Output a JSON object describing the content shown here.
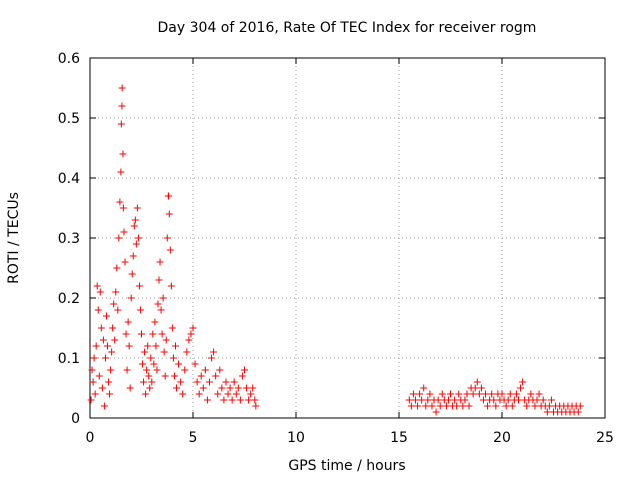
{
  "chart_data": {
    "type": "scatter",
    "title": "Day 304 of 2016, Rate Of TEC Index for receiver rogm",
    "xlabel": "GPS time / hours",
    "ylabel": "ROTI / TECUs",
    "xlim": [
      0,
      25
    ],
    "ylim": [
      0,
      0.6
    ],
    "x_ticks": [
      "0",
      "5",
      "10",
      "15",
      "20",
      "25"
    ],
    "y_ticks": [
      "0",
      "0.1",
      "0.2",
      "0.3",
      "0.4",
      "0.5",
      "0.6"
    ],
    "x_tick_values": [
      0,
      5,
      10,
      15,
      20,
      25
    ],
    "y_tick_values": [
      0,
      0.1,
      0.2,
      0.3,
      0.4,
      0.5,
      0.6
    ],
    "grid": true,
    "legend": "none",
    "marker": "plus",
    "color": "#ff0000",
    "series": [
      {
        "points": [
          [
            0.05,
            0.03
          ],
          [
            0.1,
            0.08
          ],
          [
            0.15,
            0.06
          ],
          [
            0.2,
            0.1
          ],
          [
            0.25,
            0.04
          ],
          [
            0.3,
            0.12
          ],
          [
            0.35,
            0.22
          ],
          [
            0.4,
            0.18
          ],
          [
            0.45,
            0.07
          ],
          [
            0.5,
            0.21
          ],
          [
            0.55,
            0.15
          ],
          [
            0.6,
            0.05
          ],
          [
            0.65,
            0.13
          ],
          [
            0.7,
            0.02
          ],
          [
            0.75,
            0.1
          ],
          [
            0.8,
            0.17
          ],
          [
            0.85,
            0.12
          ],
          [
            0.9,
            0.06
          ],
          [
            0.95,
            0.04
          ],
          [
            1.0,
            0.08
          ],
          [
            1.05,
            0.11
          ],
          [
            1.1,
            0.15
          ],
          [
            1.15,
            0.19
          ],
          [
            1.2,
            0.13
          ],
          [
            1.25,
            0.21
          ],
          [
            1.3,
            0.25
          ],
          [
            1.35,
            0.18
          ],
          [
            1.4,
            0.3
          ],
          [
            1.45,
            0.36
          ],
          [
            1.5,
            0.41
          ],
          [
            1.52,
            0.49
          ],
          [
            1.55,
            0.52
          ],
          [
            1.56,
            0.55
          ],
          [
            1.6,
            0.44
          ],
          [
            1.62,
            0.35
          ],
          [
            1.65,
            0.31
          ],
          [
            1.7,
            0.26
          ],
          [
            1.75,
            0.14
          ],
          [
            1.8,
            0.08
          ],
          [
            1.85,
            0.16
          ],
          [
            1.9,
            0.12
          ],
          [
            1.95,
            0.05
          ],
          [
            2.0,
            0.2
          ],
          [
            2.05,
            0.24
          ],
          [
            2.1,
            0.27
          ],
          [
            2.15,
            0.32
          ],
          [
            2.2,
            0.33
          ],
          [
            2.25,
            0.29
          ],
          [
            2.3,
            0.35
          ],
          [
            2.35,
            0.3
          ],
          [
            2.4,
            0.22
          ],
          [
            2.45,
            0.18
          ],
          [
            2.5,
            0.14
          ],
          [
            2.55,
            0.09
          ],
          [
            2.6,
            0.06
          ],
          [
            2.65,
            0.11
          ],
          [
            2.7,
            0.04
          ],
          [
            2.75,
            0.08
          ],
          [
            2.8,
            0.12
          ],
          [
            2.85,
            0.07
          ],
          [
            2.9,
            0.05
          ],
          [
            2.95,
            0.1
          ],
          [
            3.0,
            0.06
          ],
          [
            3.05,
            0.14
          ],
          [
            3.1,
            0.09
          ],
          [
            3.15,
            0.16
          ],
          [
            3.2,
            0.12
          ],
          [
            3.25,
            0.08
          ],
          [
            3.3,
            0.19
          ],
          [
            3.35,
            0.23
          ],
          [
            3.4,
            0.26
          ],
          [
            3.45,
            0.18
          ],
          [
            3.5,
            0.14
          ],
          [
            3.55,
            0.2
          ],
          [
            3.6,
            0.11
          ],
          [
            3.65,
            0.07
          ],
          [
            3.7,
            0.13
          ],
          [
            3.75,
            0.3
          ],
          [
            3.8,
            0.37
          ],
          [
            3.82,
            0.37
          ],
          [
            3.85,
            0.34
          ],
          [
            3.9,
            0.28
          ],
          [
            3.95,
            0.22
          ],
          [
            4.0,
            0.15
          ],
          [
            4.05,
            0.1
          ],
          [
            4.1,
            0.07
          ],
          [
            4.15,
            0.12
          ],
          [
            4.2,
            0.05
          ],
          [
            4.3,
            0.09
          ],
          [
            4.4,
            0.06
          ],
          [
            4.5,
            0.04
          ],
          [
            4.6,
            0.08
          ],
          [
            4.7,
            0.11
          ],
          [
            4.8,
            0.13
          ],
          [
            4.9,
            0.14
          ],
          [
            5.0,
            0.15
          ],
          [
            5.1,
            0.09
          ],
          [
            5.2,
            0.06
          ],
          [
            5.3,
            0.04
          ],
          [
            5.4,
            0.07
          ],
          [
            5.5,
            0.05
          ],
          [
            5.6,
            0.08
          ],
          [
            5.7,
            0.03
          ],
          [
            5.8,
            0.06
          ],
          [
            5.9,
            0.1
          ],
          [
            6.0,
            0.11
          ],
          [
            6.1,
            0.07
          ],
          [
            6.2,
            0.04
          ],
          [
            6.3,
            0.08
          ],
          [
            6.4,
            0.05
          ],
          [
            6.5,
            0.03
          ],
          [
            6.6,
            0.06
          ],
          [
            6.7,
            0.04
          ],
          [
            6.8,
            0.05
          ],
          [
            6.9,
            0.03
          ],
          [
            7.0,
            0.06
          ],
          [
            7.1,
            0.04
          ],
          [
            7.2,
            0.05
          ],
          [
            7.3,
            0.03
          ],
          [
            7.4,
            0.07
          ],
          [
            7.5,
            0.08
          ],
          [
            7.6,
            0.05
          ],
          [
            7.7,
            0.03
          ],
          [
            7.8,
            0.04
          ],
          [
            7.9,
            0.05
          ],
          [
            8.0,
            0.03
          ],
          [
            8.05,
            0.02
          ]
        ]
      },
      {
        "points": [
          [
            15.5,
            0.03
          ],
          [
            15.6,
            0.02
          ],
          [
            15.7,
            0.04
          ],
          [
            15.8,
            0.03
          ],
          [
            15.9,
            0.02
          ],
          [
            16.0,
            0.04
          ],
          [
            16.1,
            0.03
          ],
          [
            16.2,
            0.05
          ],
          [
            16.3,
            0.02
          ],
          [
            16.4,
            0.03
          ],
          [
            16.5,
            0.04
          ],
          [
            16.6,
            0.02
          ],
          [
            16.7,
            0.03
          ],
          [
            16.8,
            0.01
          ],
          [
            16.9,
            0.03
          ],
          [
            17.0,
            0.02
          ],
          [
            17.1,
            0.04
          ],
          [
            17.2,
            0.03
          ],
          [
            17.3,
            0.02
          ],
          [
            17.4,
            0.03
          ],
          [
            17.5,
            0.04
          ],
          [
            17.6,
            0.02
          ],
          [
            17.7,
            0.03
          ],
          [
            17.8,
            0.02
          ],
          [
            17.9,
            0.04
          ],
          [
            18.0,
            0.03
          ],
          [
            18.1,
            0.02
          ],
          [
            18.2,
            0.03
          ],
          [
            18.3,
            0.04
          ],
          [
            18.4,
            0.02
          ],
          [
            18.5,
            0.05
          ],
          [
            18.6,
            0.04
          ],
          [
            18.7,
            0.05
          ],
          [
            18.8,
            0.06
          ],
          [
            18.9,
            0.04
          ],
          [
            19.0,
            0.05
          ],
          [
            19.1,
            0.03
          ],
          [
            19.2,
            0.04
          ],
          [
            19.3,
            0.02
          ],
          [
            19.4,
            0.03
          ],
          [
            19.5,
            0.04
          ],
          [
            19.6,
            0.03
          ],
          [
            19.7,
            0.02
          ],
          [
            19.8,
            0.04
          ],
          [
            19.9,
            0.03
          ],
          [
            20.0,
            0.04
          ],
          [
            20.1,
            0.03
          ],
          [
            20.2,
            0.02
          ],
          [
            20.3,
            0.03
          ],
          [
            20.4,
            0.04
          ],
          [
            20.5,
            0.02
          ],
          [
            20.6,
            0.03
          ],
          [
            20.7,
            0.04
          ],
          [
            20.8,
            0.03
          ],
          [
            20.9,
            0.05
          ],
          [
            21.0,
            0.06
          ],
          [
            21.1,
            0.03
          ],
          [
            21.2,
            0.02
          ],
          [
            21.3,
            0.03
          ],
          [
            21.4,
            0.04
          ],
          [
            21.5,
            0.03
          ],
          [
            21.6,
            0.02
          ],
          [
            21.7,
            0.03
          ],
          [
            21.8,
            0.04
          ],
          [
            21.9,
            0.02
          ],
          [
            22.0,
            0.03
          ],
          [
            22.1,
            0.02
          ],
          [
            22.2,
            0.01
          ],
          [
            22.3,
            0.02
          ],
          [
            22.4,
            0.03
          ],
          [
            22.5,
            0.01
          ],
          [
            22.6,
            0.02
          ],
          [
            22.7,
            0.01
          ],
          [
            22.8,
            0.02
          ],
          [
            22.9,
            0.01
          ],
          [
            23.0,
            0.02
          ],
          [
            23.1,
            0.01
          ],
          [
            23.2,
            0.02
          ],
          [
            23.3,
            0.01
          ],
          [
            23.4,
            0.02
          ],
          [
            23.5,
            0.01
          ],
          [
            23.6,
            0.02
          ],
          [
            23.7,
            0.01
          ],
          [
            23.8,
            0.02
          ]
        ]
      }
    ]
  }
}
